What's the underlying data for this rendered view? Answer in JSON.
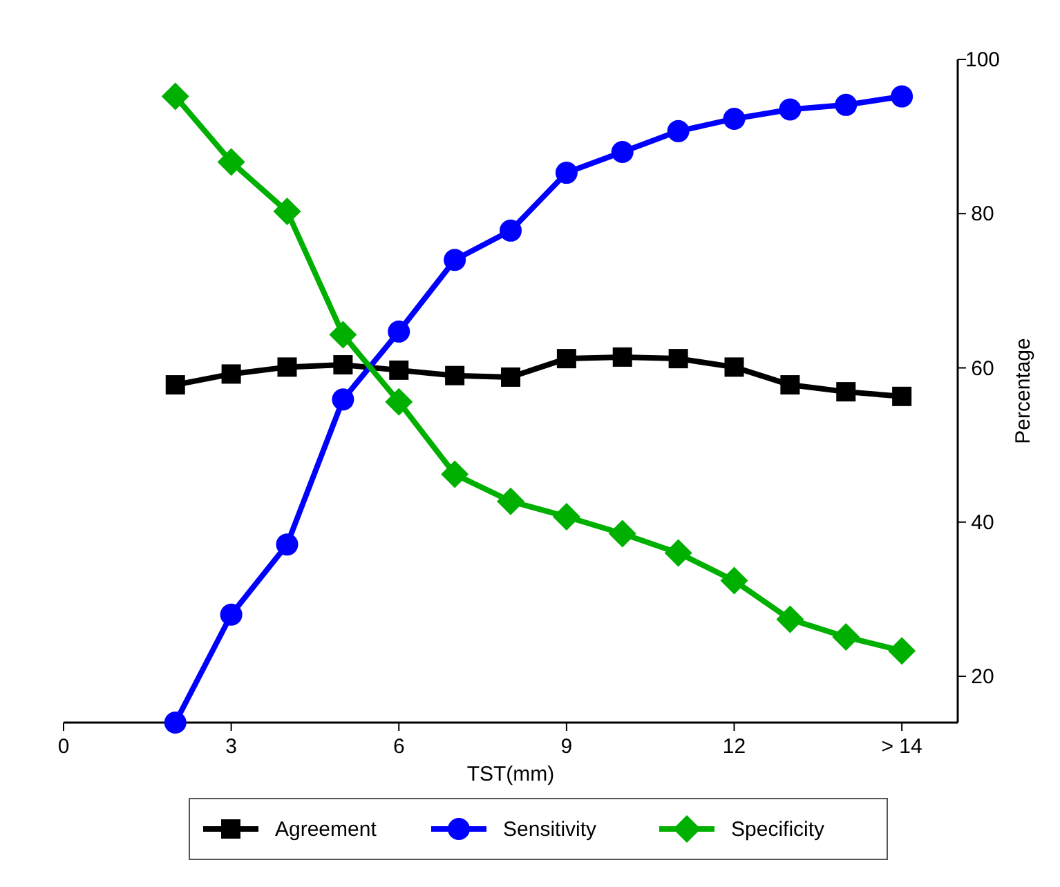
{
  "chart_data": {
    "type": "line",
    "xlabel": "TST(mm)",
    "ylabel": "Percentage",
    "x": [
      2,
      3,
      4,
      5,
      6,
      7,
      8,
      9,
      10,
      11,
      12,
      13,
      14,
      15
    ],
    "series": [
      {
        "name": "Agreement",
        "color": "#000000",
        "marker": "square",
        "values": [
          57.8,
          59.2,
          60.1,
          60.4,
          59.7,
          59,
          58.8,
          61.2,
          61.4,
          61.2,
          60.1,
          57.8,
          56.9,
          56.3
        ]
      },
      {
        "name": "Sensitivity",
        "color": "#0000ff",
        "marker": "circle",
        "values": [
          14,
          28,
          37.1,
          55.9,
          64.7,
          74,
          77.8,
          85.3,
          88,
          90.7,
          92.3,
          93.5,
          94.1,
          95.2
        ]
      },
      {
        "name": "Specificity",
        "color": "#00b000",
        "marker": "diamond",
        "values": [
          95.2,
          86.7,
          80.3,
          64.3,
          55.6,
          46.2,
          42.7,
          40.7,
          38.5,
          36,
          32.4,
          27.4,
          25.1,
          23.3
        ]
      }
    ],
    "xlim": [
      0,
      16
    ],
    "xticks": [
      0,
      3,
      6,
      9,
      12,
      {
        "value": 15,
        "label": "> 14"
      }
    ],
    "ylim": [
      14,
      100
    ],
    "yticks": [
      20,
      40,
      60,
      80,
      100
    ],
    "grid": false,
    "legend": "bottom",
    "line_style": "solid"
  }
}
